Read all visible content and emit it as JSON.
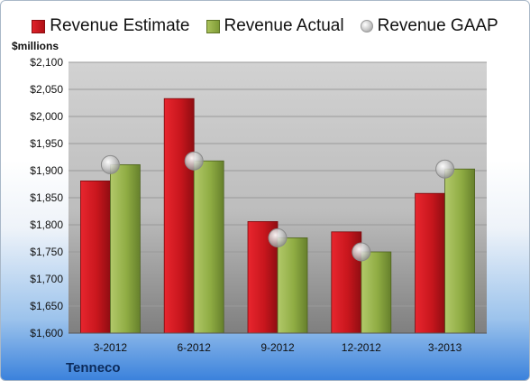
{
  "unit_label": "$millions",
  "company": "Tenneco",
  "colors": {
    "estimate": "#c8161d",
    "actual": "#8fac43",
    "gaap": "#b8b8b8"
  },
  "chart_data": {
    "type": "bar",
    "title": "",
    "xlabel": "",
    "ylabel": "$millions",
    "categories": [
      "3-2012",
      "6-2012",
      "9-2012",
      "12-2012",
      "3-2013"
    ],
    "series": [
      {
        "name": "Revenue Estimate",
        "kind": "bar",
        "values": [
          1881,
          2033,
          1806,
          1787,
          1858
        ]
      },
      {
        "name": "Revenue Actual",
        "kind": "bar",
        "values": [
          1911,
          1918,
          1776,
          1750,
          1903
        ]
      },
      {
        "name": "Revenue GAAP",
        "kind": "marker",
        "values": [
          1911,
          1918,
          1776,
          1750,
          1903
        ]
      }
    ],
    "ylim": [
      1600,
      2100
    ],
    "yticks": [
      1600,
      1650,
      1700,
      1750,
      1800,
      1850,
      1900,
      1950,
      2000,
      2050,
      2100
    ],
    "ytick_labels": [
      "$1,600",
      "$1,650",
      "$1,700",
      "$1,750",
      "$1,800",
      "$1,850",
      "$1,900",
      "$1,950",
      "$2,000",
      "$2,050",
      "$2,100"
    ],
    "grid": true,
    "legend_position": "top"
  }
}
